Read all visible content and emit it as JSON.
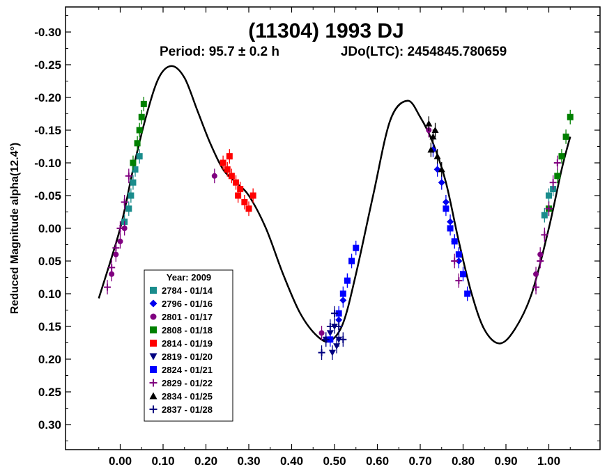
{
  "chart_data": {
    "type": "scatter",
    "title": "(11304) 1993 DJ",
    "subtitle_period": "Period: 95.7 ± 0.2 h",
    "subtitle_epoch": "JDo(LTC): 2454845.780659",
    "xlabel": "",
    "ylabel": "Reduced Magnitude alpha(12.4°)",
    "xlim": [
      -0.13,
      1.13
    ],
    "ylim": [
      -0.33,
      0.34
    ],
    "y_inverted": true,
    "x_ticks": [
      "0.00",
      "0.10",
      "0.20",
      "0.30",
      "0.40",
      "0.50",
      "0.60",
      "0.70",
      "0.80",
      "0.90",
      "1.00"
    ],
    "x_tick_values": [
      0.0,
      0.1,
      0.2,
      0.3,
      0.4,
      0.5,
      0.6,
      0.7,
      0.8,
      0.9,
      1.0
    ],
    "y_ticks": [
      "-0.30",
      "-0.25",
      "-0.20",
      "-0.15",
      "-0.10",
      "-0.05",
      "0.00",
      "0.05",
      "0.10",
      "0.15",
      "0.20",
      "0.25",
      "0.30"
    ],
    "y_tick_values": [
      -0.3,
      -0.25,
      -0.2,
      -0.15,
      -0.1,
      -0.05,
      0.0,
      0.05,
      0.1,
      0.15,
      0.2,
      0.25,
      0.3
    ],
    "grid": false,
    "legend": {
      "title": "Year: 2009",
      "placement": "bottom-left"
    },
    "fit_curve": {
      "color": "#000000",
      "points": [
        [
          -0.05,
          0.107
        ],
        [
          0.0,
          0.0
        ],
        [
          0.03,
          -0.09
        ],
        [
          0.06,
          -0.17
        ],
        [
          0.09,
          -0.23
        ],
        [
          0.12,
          -0.248
        ],
        [
          0.15,
          -0.23
        ],
        [
          0.18,
          -0.18
        ],
        [
          0.21,
          -0.13
        ],
        [
          0.24,
          -0.09
        ],
        [
          0.27,
          -0.07
        ],
        [
          0.3,
          -0.05
        ],
        [
          0.34,
          0.0
        ],
        [
          0.38,
          0.07
        ],
        [
          0.42,
          0.13
        ],
        [
          0.46,
          0.165
        ],
        [
          0.49,
          0.172
        ],
        [
          0.52,
          0.145
        ],
        [
          0.55,
          0.07
        ],
        [
          0.59,
          -0.05
        ],
        [
          0.63,
          -0.165
        ],
        [
          0.67,
          -0.195
        ],
        [
          0.7,
          -0.17
        ],
        [
          0.73,
          -0.13
        ],
        [
          0.76,
          -0.07
        ],
        [
          0.79,
          0.02
        ],
        [
          0.82,
          0.1
        ],
        [
          0.85,
          0.155
        ],
        [
          0.885,
          0.176
        ],
        [
          0.92,
          0.155
        ],
        [
          0.96,
          0.1
        ],
        [
          1.0,
          0.0
        ],
        [
          1.03,
          -0.09
        ],
        [
          1.05,
          -0.14
        ]
      ]
    },
    "series": [
      {
        "name": "2784 - 01/14",
        "color": "#1a8c8c",
        "marker": "square",
        "points": [
          [
            0.01,
            -0.01
          ],
          [
            0.02,
            -0.03
          ],
          [
            0.025,
            -0.05
          ],
          [
            0.03,
            -0.07
          ],
          [
            0.035,
            -0.09
          ],
          [
            0.045,
            -0.11
          ],
          [
            0.99,
            -0.02
          ],
          [
            1.0,
            -0.05
          ],
          [
            1.01,
            -0.06
          ]
        ]
      },
      {
        "name": "2796 - 01/16",
        "color": "#0000ee",
        "marker": "diamond",
        "points": [
          [
            0.73,
            -0.12
          ],
          [
            0.74,
            -0.09
          ],
          [
            0.75,
            -0.07
          ],
          [
            0.76,
            -0.04
          ],
          [
            0.77,
            -0.01
          ],
          [
            0.78,
            0.02
          ],
          [
            0.79,
            0.05
          ],
          [
            0.51,
            0.14
          ],
          [
            0.52,
            0.11
          ],
          [
            0.53,
            0.08
          ]
        ]
      },
      {
        "name": "2801 - 01/17",
        "color": "#800080",
        "marker": "circle",
        "points": [
          [
            -0.02,
            0.07
          ],
          [
            -0.01,
            0.04
          ],
          [
            0.0,
            0.02
          ],
          [
            0.01,
            0.0
          ],
          [
            0.97,
            0.07
          ],
          [
            0.98,
            0.04
          ],
          [
            0.22,
            -0.08
          ],
          [
            0.47,
            0.16
          ],
          [
            0.72,
            -0.15
          ]
        ]
      },
      {
        "name": "2808 - 01/18",
        "color": "#008000",
        "marker": "square",
        "points": [
          [
            0.03,
            -0.1
          ],
          [
            0.04,
            -0.13
          ],
          [
            0.045,
            -0.15
          ],
          [
            0.05,
            -0.17
          ],
          [
            0.055,
            -0.19
          ],
          [
            1.02,
            -0.08
          ],
          [
            1.03,
            -0.11
          ],
          [
            1.04,
            -0.14
          ],
          [
            1.05,
            -0.17
          ],
          [
            1.0,
            -0.03
          ]
        ]
      },
      {
        "name": "2814 - 01/19",
        "color": "#ff0000",
        "marker": "square",
        "points": [
          [
            0.24,
            -0.1
          ],
          [
            0.25,
            -0.09
          ],
          [
            0.26,
            -0.08
          ],
          [
            0.27,
            -0.07
          ],
          [
            0.28,
            -0.06
          ],
          [
            0.29,
            -0.04
          ],
          [
            0.3,
            -0.03
          ],
          [
            0.31,
            -0.05
          ],
          [
            0.255,
            -0.11
          ],
          [
            0.275,
            -0.05
          ]
        ]
      },
      {
        "name": "2819 - 01/20",
        "color": "#000080",
        "marker": "triangle-down",
        "points": [
          [
            0.48,
            0.17
          ],
          [
            0.49,
            0.16
          ],
          [
            0.5,
            0.15
          ],
          [
            0.51,
            0.17
          ],
          [
            0.495,
            0.19
          ],
          [
            0.505,
            0.18
          ]
        ]
      },
      {
        "name": "2824 - 01/21",
        "color": "#0000ff",
        "marker": "square",
        "points": [
          [
            0.51,
            0.13
          ],
          [
            0.52,
            0.1
          ],
          [
            0.53,
            0.08
          ],
          [
            0.54,
            0.05
          ],
          [
            0.55,
            0.03
          ],
          [
            0.76,
            -0.03
          ],
          [
            0.77,
            0.0
          ],
          [
            0.78,
            0.02
          ],
          [
            0.79,
            0.04
          ],
          [
            0.8,
            0.07
          ],
          [
            0.81,
            0.1
          ],
          [
            0.49,
            0.17
          ]
        ]
      },
      {
        "name": "2829 - 01/22",
        "color": "#800080",
        "marker": "cross",
        "points": [
          [
            -0.03,
            0.09
          ],
          [
            -0.02,
            0.06
          ],
          [
            -0.01,
            0.03
          ],
          [
            0.0,
            0.0
          ],
          [
            0.01,
            -0.04
          ],
          [
            0.02,
            -0.08
          ],
          [
            0.97,
            0.09
          ],
          [
            0.98,
            0.05
          ],
          [
            0.99,
            0.01
          ],
          [
            1.0,
            -0.03
          ],
          [
            1.01,
            -0.07
          ],
          [
            1.02,
            -0.1
          ],
          [
            0.78,
            0.05
          ],
          [
            0.79,
            0.08
          ]
        ]
      },
      {
        "name": "2834 - 01/25",
        "color": "#000000",
        "marker": "triangle-up",
        "points": [
          [
            0.72,
            -0.16
          ],
          [
            0.73,
            -0.14
          ],
          [
            0.74,
            -0.11
          ],
          [
            0.75,
            -0.09
          ],
          [
            0.725,
            -0.12
          ],
          [
            0.735,
            -0.15
          ]
        ]
      },
      {
        "name": "2837 - 01/28",
        "color": "#000080",
        "marker": "cross",
        "points": [
          [
            0.47,
            0.19
          ],
          [
            0.48,
            0.17
          ],
          [
            0.49,
            0.15
          ],
          [
            0.5,
            0.13
          ],
          [
            0.51,
            0.15
          ],
          [
            0.52,
            0.17
          ]
        ]
      }
    ]
  }
}
